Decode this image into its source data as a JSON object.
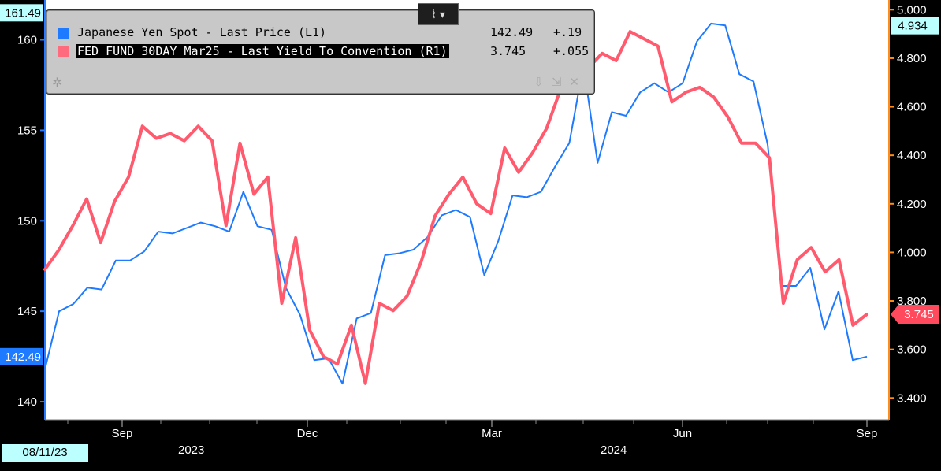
{
  "legend": {
    "series": [
      {
        "name": "Japanese Yen Spot - Last Price (L1)",
        "value": "142.49",
        "change": "+.19",
        "color": "#1e7bff"
      },
      {
        "name": "FED FUND 30DAY Mar25 - Last Yield To Convention (R1)",
        "value": "3.745",
        "change": "+.055",
        "color": "#ff5a6e"
      }
    ]
  },
  "toolbar": {
    "chart_button_icon": "line-chart-icon"
  },
  "date_badge": "08/11/23",
  "years": [
    "2023",
    "2024"
  ],
  "chart_data": {
    "type": "line",
    "x_labels": [
      "Sep",
      "Dec",
      "Mar",
      "Jun",
      "Sep"
    ],
    "left_axis": {
      "ticks": [
        140,
        145,
        150,
        155,
        160
      ],
      "range": [
        139,
        162.2
      ],
      "current": "142.49",
      "high": "161.49"
    },
    "right_axis": {
      "ticks": [
        "3.400",
        "3.600",
        "3.800",
        "4.000",
        "4.200",
        "4.400",
        "4.600",
        "4.800",
        "5.000"
      ],
      "range": [
        3.31,
        5.04
      ],
      "current": "3.745",
      "high": "4.934"
    },
    "series": [
      {
        "name": "Japanese Yen Spot - Last Price (L1)",
        "axis": "left",
        "color": "#1e7bff",
        "values": [
          141.8,
          145.0,
          145.4,
          146.3,
          146.2,
          147.8,
          147.8,
          148.3,
          149.4,
          149.3,
          149.6,
          149.9,
          149.7,
          149.4,
          151.6,
          149.7,
          149.5,
          146.3,
          144.8,
          142.3,
          142.4,
          141.0,
          144.6,
          144.9,
          148.1,
          148.2,
          148.4,
          149.1,
          150.3,
          150.6,
          150.2,
          147.0,
          148.9,
          151.4,
          151.3,
          151.6,
          153.0,
          154.3,
          158.6,
          153.2,
          156.0,
          155.8,
          157.1,
          157.6,
          157.1,
          157.6,
          159.9,
          160.9,
          160.8,
          158.1,
          157.7,
          154.2,
          146.4,
          146.4,
          147.4,
          144.0,
          146.1,
          142.3,
          142.49
        ]
      },
      {
        "name": "FED FUND 30DAY Mar25 - Last Yield To Convention (R1)",
        "axis": "right",
        "color": "#ff5a6e",
        "values": [
          3.93,
          4.01,
          4.11,
          4.22,
          4.04,
          4.21,
          4.31,
          4.52,
          4.47,
          4.49,
          4.46,
          4.52,
          4.46,
          4.11,
          4.45,
          4.24,
          4.31,
          3.79,
          4.06,
          3.68,
          3.57,
          3.54,
          3.7,
          3.46,
          3.79,
          3.76,
          3.82,
          3.96,
          4.15,
          4.24,
          4.31,
          4.2,
          4.16,
          4.43,
          4.33,
          4.41,
          4.51,
          4.67,
          4.91,
          4.76,
          4.82,
          4.79,
          4.91,
          4.88,
          4.85,
          4.62,
          4.66,
          4.68,
          4.64,
          4.56,
          4.45,
          4.45,
          4.39,
          3.79,
          3.97,
          4.02,
          3.92,
          3.97,
          3.7,
          3.745
        ]
      }
    ]
  }
}
